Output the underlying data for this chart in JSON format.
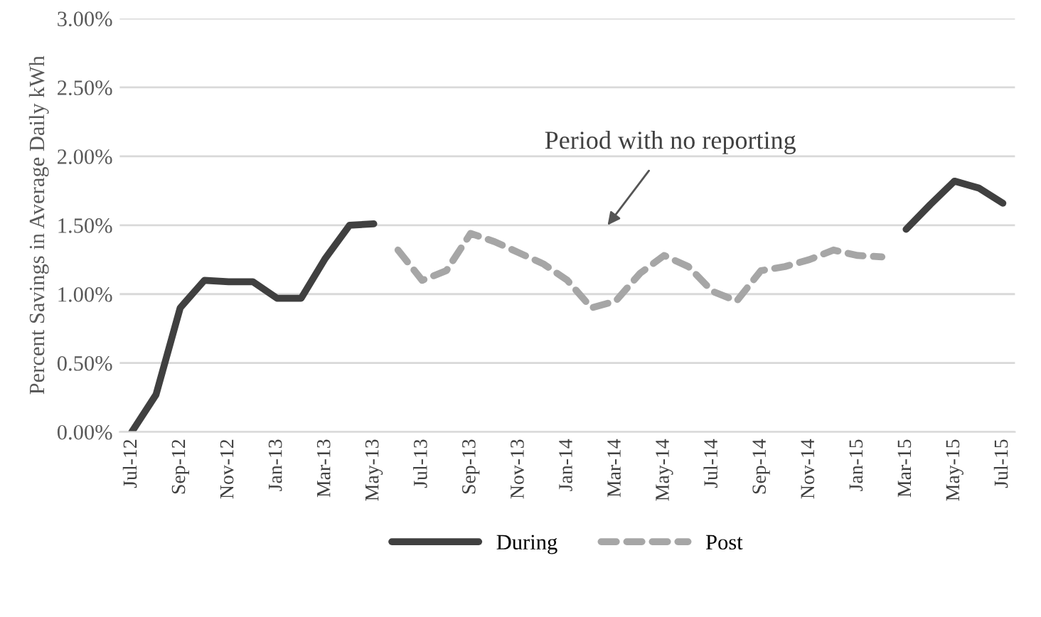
{
  "chart_data": {
    "type": "line",
    "ylabel": "Percent Savings in Average Daily kWh",
    "categories": [
      "Jul-12",
      null,
      "Sep-12",
      null,
      "Nov-12",
      null,
      "Jan-13",
      null,
      "Mar-13",
      null,
      "May-13",
      null,
      "Jul-13",
      null,
      "Sep-13",
      null,
      "Nov-13",
      null,
      "Jan-14",
      null,
      "Mar-14",
      null,
      "May-14",
      null,
      "Jul-14",
      null,
      "Sep-14",
      null,
      "Nov-14",
      null,
      "Jan-15",
      null,
      "Mar-15",
      null,
      "May-15",
      null,
      "Jul-15"
    ],
    "series": [
      {
        "name": "During",
        "color": "#404040",
        "line_style": "solid",
        "values": [
          0,
          0.27,
          0.9,
          1.1,
          1.09,
          1.09,
          0.97,
          0.97,
          1.26,
          1.5,
          1.51,
          null,
          null,
          null,
          null,
          null,
          null,
          null,
          null,
          null,
          null,
          null,
          null,
          null,
          null,
          null,
          null,
          null,
          null,
          null,
          null,
          null,
          1.47,
          1.65,
          1.82,
          1.77,
          1.66
        ]
      },
      {
        "name": "Post",
        "color": "#a6a6a6",
        "line_style": "dashed",
        "values": [
          null,
          null,
          null,
          null,
          null,
          null,
          null,
          null,
          null,
          null,
          null,
          1.32,
          1.1,
          1.17,
          1.44,
          1.38,
          1.3,
          1.22,
          1.1,
          0.9,
          0.95,
          1.15,
          1.28,
          1.2,
          1.02,
          0.95,
          1.17,
          1.2,
          1.25,
          1.32,
          1.28,
          1.27,
          null,
          null,
          null,
          null,
          null
        ]
      }
    ],
    "ylim": [
      0,
      3
    ],
    "yticks": [
      {
        "value": 0,
        "label": "0.00%"
      },
      {
        "value": 0.5,
        "label": "0.50%"
      },
      {
        "value": 1,
        "label": "1.00%"
      },
      {
        "value": 1.5,
        "label": "1.50%"
      },
      {
        "value": 2,
        "label": "2.00%"
      },
      {
        "value": 2.5,
        "label": "2.50%"
      },
      {
        "value": 3,
        "label": "3.00%"
      }
    ],
    "grid": "y",
    "legend": "bottom",
    "marker": "none",
    "annotations": [
      "Period with no reporting"
    ]
  }
}
